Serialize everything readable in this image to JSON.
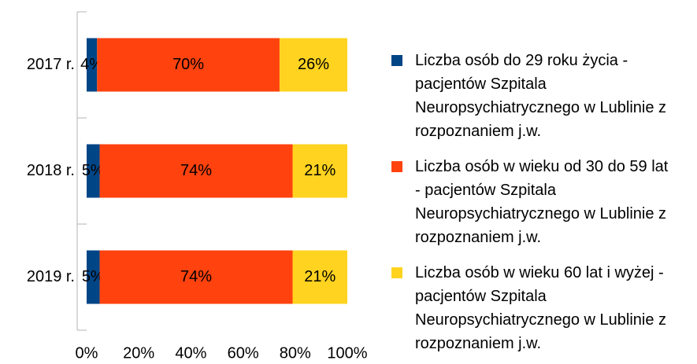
{
  "chart_data": {
    "type": "stacked_barh",
    "categories": [
      "2017 r.",
      "2018 r.",
      "2019 r."
    ],
    "series": [
      {
        "name": "Liczba osób do 29 roku życia - pacjentów Szpitala Neuropsychiatrycznego w Lublinie z rozpoznaniem j.w.",
        "color": "#004586",
        "values": [
          4,
          5,
          5
        ],
        "value_labels": [
          "4%",
          "5%",
          "5%"
        ]
      },
      {
        "name": "Liczba osób w wieku od 30 do 59 lat - pacjentów Szpitala Neuropsychiatrycznego w Lublinie z rozpoznaniem j.w.",
        "color": "#ff420e",
        "values": [
          70,
          74,
          74
        ],
        "value_labels": [
          "70%",
          "74%",
          "74%"
        ]
      },
      {
        "name": "Liczba osób w wieku 60 lat i wyżej - pacjentów Szpitala Neuropsychiatrycznego w Lublinie z rozpoznaniem j.w.",
        "color": "#ffd320",
        "values": [
          26,
          21,
          21
        ],
        "value_labels": [
          "26%",
          "21%",
          "21%"
        ]
      }
    ],
    "xlim": [
      0,
      100
    ],
    "xticks": [
      {
        "value": 0,
        "label": "0%"
      },
      {
        "value": 20,
        "label": "20%"
      },
      {
        "value": 40,
        "label": "40%"
      },
      {
        "value": 60,
        "label": "60%"
      },
      {
        "value": 80,
        "label": "80%"
      },
      {
        "value": 100,
        "label": "100%"
      }
    ],
    "legend": "right"
  }
}
